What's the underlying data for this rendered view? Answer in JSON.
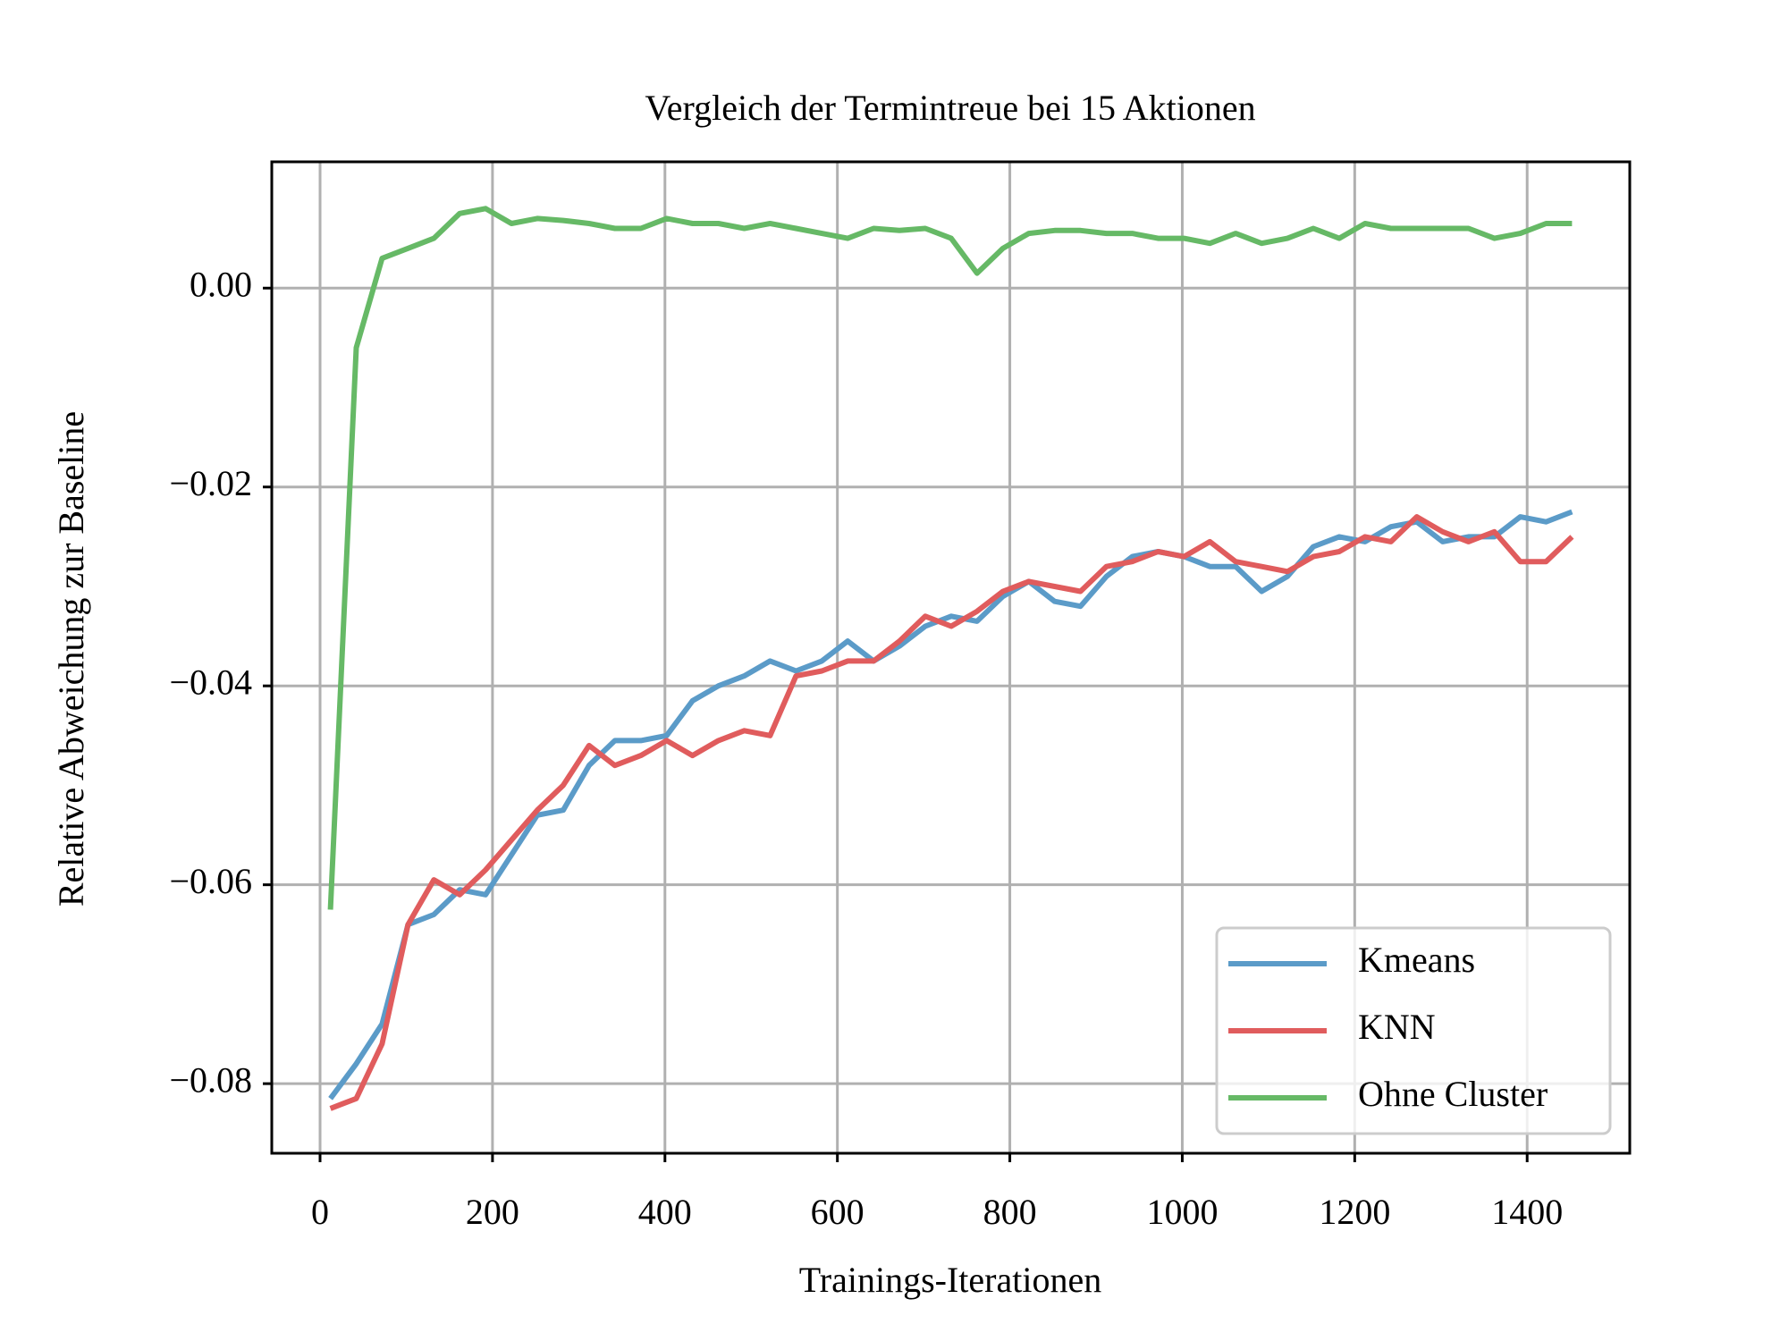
{
  "chart_data": {
    "type": "line",
    "title": "Vergleich der Termintreue bei 15 Aktionen",
    "xlabel": "Trainings-Iterationen",
    "ylabel": "Relative Abweichung zur Baseline",
    "x": [
      12,
      42,
      72,
      102,
      132,
      162,
      192,
      222,
      252,
      282,
      312,
      342,
      372,
      402,
      432,
      462,
      492,
      522,
      552,
      582,
      612,
      642,
      672,
      702,
      732,
      762,
      792,
      822,
      852,
      882,
      912,
      942,
      972,
      1002,
      1032,
      1062,
      1092,
      1122,
      1152,
      1182,
      1212,
      1242,
      1272,
      1302,
      1332,
      1362,
      1392,
      1422,
      1452
    ],
    "series": [
      {
        "name": "Kmeans",
        "color": "#5b9bc8",
        "values": [
          -0.0815,
          -0.078,
          -0.074,
          -0.064,
          -0.063,
          -0.0605,
          -0.061,
          -0.057,
          -0.053,
          -0.0525,
          -0.048,
          -0.0455,
          -0.0455,
          -0.045,
          -0.0415,
          -0.04,
          -0.039,
          -0.0375,
          -0.0385,
          -0.0375,
          -0.0355,
          -0.0375,
          -0.036,
          -0.034,
          -0.033,
          -0.0335,
          -0.031,
          -0.0295,
          -0.0315,
          -0.032,
          -0.029,
          -0.027,
          -0.0265,
          -0.027,
          -0.028,
          -0.028,
          -0.0305,
          -0.029,
          -0.026,
          -0.025,
          -0.0255,
          -0.024,
          -0.0235,
          -0.0255,
          -0.025,
          -0.025,
          -0.023,
          -0.0235,
          -0.0225
        ]
      },
      {
        "name": "KNN",
        "color": "#e05c5d",
        "values": [
          -0.0825,
          -0.0815,
          -0.076,
          -0.064,
          -0.0595,
          -0.061,
          -0.0585,
          -0.0555,
          -0.0525,
          -0.05,
          -0.046,
          -0.048,
          -0.047,
          -0.0455,
          -0.047,
          -0.0455,
          -0.0445,
          -0.045,
          -0.039,
          -0.0385,
          -0.0375,
          -0.0375,
          -0.0355,
          -0.033,
          -0.034,
          -0.0325,
          -0.0305,
          -0.0295,
          -0.03,
          -0.0305,
          -0.028,
          -0.0275,
          -0.0265,
          -0.027,
          -0.0255,
          -0.0275,
          -0.028,
          -0.0285,
          -0.027,
          -0.0265,
          -0.025,
          -0.0255,
          -0.023,
          -0.0245,
          -0.0255,
          -0.0245,
          -0.0275,
          -0.0275,
          -0.025
        ]
      },
      {
        "name": "Ohne Cluster",
        "color": "#66b966",
        "values": [
          -0.0625,
          -0.006,
          0.003,
          0.004,
          0.005,
          0.0075,
          0.008,
          0.0065,
          0.007,
          0.0068,
          0.0065,
          0.006,
          0.006,
          0.007,
          0.0065,
          0.0065,
          0.006,
          0.0065,
          0.006,
          0.0055,
          0.005,
          0.006,
          0.0058,
          0.006,
          0.005,
          0.0015,
          0.004,
          0.0055,
          0.0058,
          0.0058,
          0.0055,
          0.0055,
          0.005,
          0.005,
          0.0045,
          0.0055,
          0.0045,
          0.005,
          0.006,
          0.005,
          0.0065,
          0.006,
          0.006,
          0.006,
          0.006,
          0.005,
          0.0055,
          0.0065,
          0.0065
        ]
      }
    ],
    "xlim": [
      -56,
      1519
    ],
    "ylim": [
      -0.087,
      0.0127
    ],
    "xticks": [
      0,
      200,
      400,
      600,
      800,
      1000,
      1200,
      1400
    ],
    "yticks": [
      {
        "value": -0.08,
        "label": "−0.08"
      },
      {
        "value": -0.06,
        "label": "−0.06"
      },
      {
        "value": -0.04,
        "label": "−0.04"
      },
      {
        "value": -0.02,
        "label": "−0.02"
      },
      {
        "value": 0,
        "label": "0.00"
      }
    ],
    "grid": true,
    "legend": "lower right"
  }
}
